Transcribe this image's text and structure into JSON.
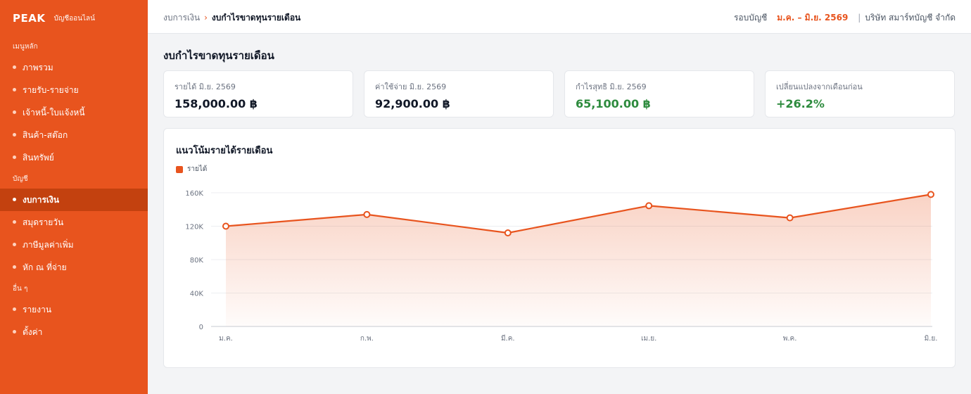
{
  "sidebar": {
    "brand": "PEAK",
    "brand_sub": "บัญชีออนไลน์",
    "sections": [
      {
        "label": "เมนูหลัก",
        "items": [
          "ภาพรวม",
          "รายรับ-รายจ่าย",
          "เจ้าหนี้-ใบแจ้งหนี้",
          "สินค้า-สต๊อก",
          "สินทรัพย์"
        ]
      },
      {
        "label": "บัญชี",
        "items": [
          "งบการเงิน",
          "สมุดรายวัน",
          "ภาษีมูลค่าเพิ่ม",
          "หัก ณ ที่จ่าย"
        ]
      },
      {
        "label": "อื่น ๆ",
        "items": [
          "รายงาน",
          "ตั้งค่า"
        ]
      }
    ],
    "active_item": "งบการเงิน"
  },
  "topbar": {
    "breadcrumb_parent": "งบการเงิน",
    "breadcrumb_sep": "›",
    "breadcrumb_current": "งบกำไรขาดทุนรายเดือน",
    "period_label": "รอบบัญชี",
    "period_range": "ม.ค. – มิ.ย. 2569",
    "divider": "|",
    "company": "บริษัท สมาร์ทบัญชี จำกัด"
  },
  "page": {
    "title": "งบกำไรขาดทุนรายเดือน"
  },
  "kpis": [
    {
      "label": "รายได้ มิ.ย. 2569",
      "value": "158,000.00 ฿"
    },
    {
      "label": "ค่าใช้จ่าย มิ.ย. 2569",
      "value": "92,900.00 ฿"
    },
    {
      "label": "กำไรสุทธิ มิ.ย. 2569",
      "value": "65,100.00 ฿"
    },
    {
      "label": "เปลี่ยนแปลงจากเดือนก่อน",
      "value": "+26.2%"
    }
  ],
  "colors": {
    "accent": "#e8541e",
    "positive": "#2e8b3e"
  },
  "chart_data": {
    "type": "area",
    "title": "แนวโน้มรายได้รายเดือน",
    "categories": [
      "ม.ค.",
      "ก.พ.",
      "มี.ค.",
      "เม.ย.",
      "พ.ค.",
      "มิ.ย."
    ],
    "series": [
      {
        "name": "รายได้",
        "values": [
          120000,
          134000,
          112000,
          144500,
          130000,
          158000
        ]
      }
    ],
    "yticks": [
      0,
      40000,
      80000,
      120000,
      160000
    ],
    "ytick_labels": [
      "0",
      "40K",
      "80K",
      "120K",
      "160K"
    ],
    "ylim": [
      0,
      160000
    ],
    "grid": true,
    "legend_position": "top-left"
  }
}
